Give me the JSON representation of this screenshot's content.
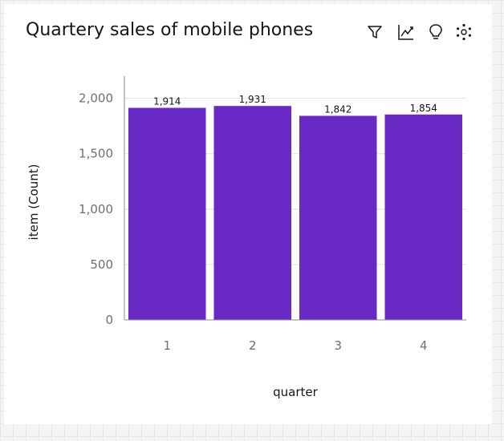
{
  "card": {
    "title": "Quartery sales of mobile phones"
  },
  "toolbar": {
    "icons": [
      "filter-icon",
      "trend-line-icon",
      "lightbulb-icon",
      "settings-icon"
    ]
  },
  "chart_data": {
    "type": "bar",
    "categories": [
      "1",
      "2",
      "3",
      "4"
    ],
    "values": [
      1914,
      1931,
      1842,
      1854
    ],
    "value_labels": [
      "1,914",
      "1,931",
      "1,842",
      "1,854"
    ],
    "xlabel": "quarter",
    "ylabel": "item (Count)",
    "ylim": [
      0,
      2200
    ],
    "yticks": [
      0,
      500,
      1000,
      1500,
      2000
    ],
    "ytick_labels": [
      "0",
      "500",
      "1,000",
      "1,500",
      "2,000"
    ],
    "bar_color": "#6929c4",
    "grid": true,
    "legend": "none"
  }
}
